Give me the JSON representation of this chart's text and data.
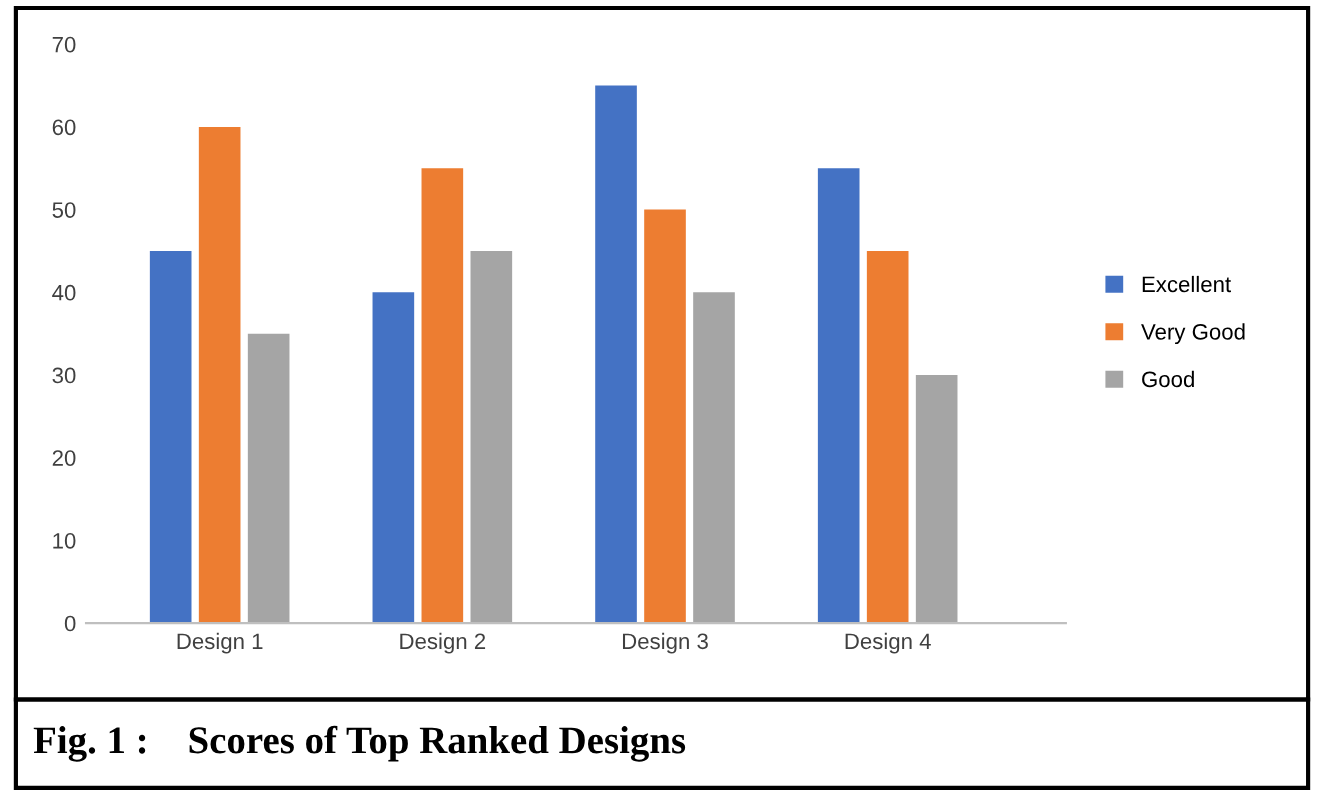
{
  "chart_data": {
    "type": "bar",
    "categories": [
      "Design 1",
      "Design 2",
      "Design 3",
      "Design 4"
    ],
    "series": [
      {
        "name": "Excellent",
        "color": "#4472c4",
        "values": [
          45,
          40,
          65,
          55
        ]
      },
      {
        "name": "Very Good",
        "color": "#ed7d31",
        "values": [
          60,
          55,
          50,
          45
        ]
      },
      {
        "name": "Good",
        "color": "#a5a5a5",
        "values": [
          35,
          45,
          40,
          30
        ]
      }
    ],
    "ylim": [
      0,
      70
    ],
    "yticks": [
      0,
      10,
      20,
      30,
      40,
      50,
      60,
      70
    ],
    "grid": false,
    "legend": "right",
    "annotations": [
      "Fig. 1 :    Scores of Top Ranked Designs"
    ]
  }
}
